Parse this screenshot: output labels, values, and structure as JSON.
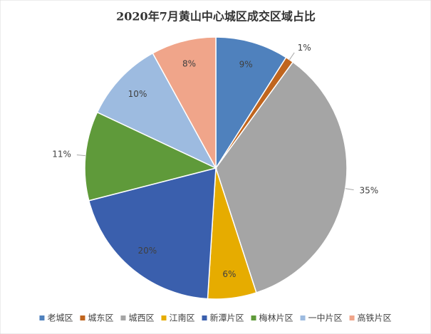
{
  "chart_data": {
    "type": "pie",
    "title": "2020年7月黄山中心城区成交区域占比",
    "categories": [
      "老城区",
      "城东区",
      "城西区",
      "江南区",
      "新潭片区",
      "梅林片区",
      "一中片区",
      "高铁片区"
    ],
    "values": [
      9,
      1,
      35,
      6,
      20,
      11,
      10,
      8
    ],
    "value_labels": [
      "9%",
      "1%",
      "35%",
      "6%",
      "20%",
      "11%",
      "10%",
      "8%"
    ],
    "colors": [
      "#4f81bd",
      "#c0651e",
      "#a5a5a5",
      "#e6ac00",
      "#3a5fad",
      "#5f9a3a",
      "#9dbbe0",
      "#f0a58a"
    ],
    "legend": "bottom"
  }
}
